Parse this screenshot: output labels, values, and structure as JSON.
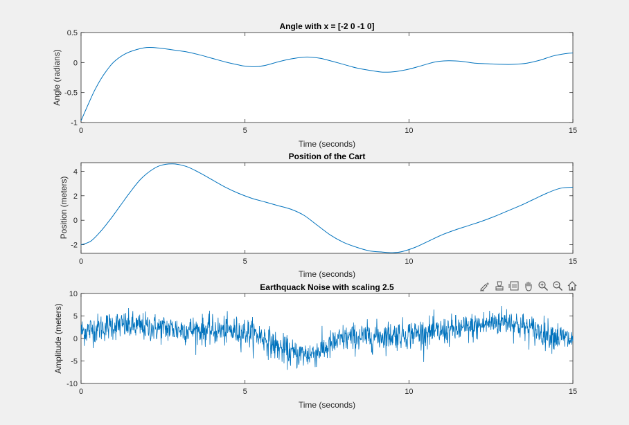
{
  "figure": {
    "background": "#f0f0f0",
    "line_color": "#0072bd"
  },
  "toolbar": {
    "icons": [
      "brush-icon",
      "data-tips-icon",
      "restore-view-icon",
      "pan-icon",
      "zoom-in-icon",
      "zoom-out-icon",
      "home-icon"
    ]
  },
  "chart_data": [
    {
      "type": "line",
      "title": "Angle with x = [-2 0 -1 0]",
      "xlabel": "Time (seconds)",
      "ylabel": "Angle (radians)",
      "xlim": [
        0,
        15
      ],
      "ylim": [
        -1,
        0.5
      ],
      "xticks": [
        "0",
        "5",
        "10",
        "15"
      ],
      "yticks": [
        "-1",
        "-0.5",
        "0",
        "0.5"
      ],
      "grid": false,
      "series": [
        {
          "x": [
            0,
            0.2,
            0.4,
            0.6,
            0.8,
            1.0,
            1.3,
            1.6,
            2.0,
            2.4,
            2.8,
            3.2,
            3.6,
            4.0,
            4.4,
            4.8,
            5.0,
            5.3,
            5.6,
            6.0,
            6.4,
            6.8,
            7.0,
            7.3,
            7.6,
            8.0,
            8.4,
            8.8,
            9.2,
            9.6,
            10.0,
            10.4,
            10.8,
            11.2,
            11.6,
            12.0,
            12.4,
            12.8,
            13.2,
            13.6,
            14.0,
            14.4,
            14.8,
            15.0
          ],
          "y": [
            -0.97,
            -0.72,
            -0.48,
            -0.28,
            -0.12,
            0.01,
            0.13,
            0.2,
            0.25,
            0.24,
            0.21,
            0.18,
            0.13,
            0.07,
            0.01,
            -0.04,
            -0.06,
            -0.07,
            -0.05,
            0.01,
            0.06,
            0.09,
            0.09,
            0.07,
            0.03,
            -0.03,
            -0.09,
            -0.13,
            -0.16,
            -0.15,
            -0.11,
            -0.05,
            0.01,
            0.03,
            0.02,
            -0.01,
            -0.02,
            -0.03,
            -0.03,
            -0.01,
            0.04,
            0.11,
            0.15,
            0.16
          ]
        }
      ]
    },
    {
      "type": "line",
      "title": "Position of the Cart",
      "xlabel": "Time (seconds)",
      "ylabel": "Position (meters)",
      "xlim": [
        0,
        15
      ],
      "ylim": [
        -2.7,
        4.7
      ],
      "xticks": [
        "0",
        "5",
        "10",
        "15"
      ],
      "yticks": [
        "-2",
        "0",
        "2",
        "4"
      ],
      "grid": false,
      "series": [
        {
          "x": [
            0,
            0.3,
            0.6,
            0.9,
            1.2,
            1.5,
            1.8,
            2.1,
            2.4,
            2.8,
            3.2,
            3.6,
            4.0,
            4.4,
            4.8,
            5.2,
            5.6,
            6.0,
            6.4,
            6.8,
            7.2,
            7.6,
            8.0,
            8.4,
            8.8,
            9.2,
            9.5,
            9.8,
            10.2,
            10.6,
            11.0,
            11.4,
            11.8,
            12.2,
            12.6,
            13.0,
            13.4,
            13.8,
            14.2,
            14.6,
            15.0
          ],
          "y": [
            -2.0,
            -1.7,
            -0.9,
            0.1,
            1.2,
            2.3,
            3.3,
            4.0,
            4.45,
            4.6,
            4.4,
            3.9,
            3.3,
            2.7,
            2.2,
            1.8,
            1.5,
            1.2,
            0.9,
            0.4,
            -0.4,
            -1.2,
            -1.8,
            -2.2,
            -2.5,
            -2.6,
            -2.65,
            -2.55,
            -2.2,
            -1.7,
            -1.2,
            -0.8,
            -0.45,
            -0.1,
            0.3,
            0.75,
            1.2,
            1.7,
            2.2,
            2.6,
            2.7
          ]
        }
      ]
    },
    {
      "type": "line",
      "title": "Earthquack Noise with scaling 2.5",
      "xlabel": "Time (seconds)",
      "ylabel": "Amplitude (meters)",
      "xlim": [
        0,
        15
      ],
      "ylim": [
        -10,
        10
      ],
      "xticks": [
        "0",
        "5",
        "10",
        "15"
      ],
      "yticks": [
        "-10",
        "-5",
        "0",
        "5",
        "10"
      ],
      "grid": false,
      "series": [
        {
          "trend_x": [
            0,
            1,
            2,
            3,
            4,
            5,
            5.5,
            6,
            6.5,
            7,
            7.5,
            8,
            9,
            10,
            11,
            12,
            12.5,
            13,
            13.5,
            14,
            15
          ],
          "trend_y": [
            1.5,
            3,
            2.5,
            2,
            1.8,
            1.5,
            0.5,
            -2,
            -3.5,
            -3.5,
            -2,
            0,
            0.5,
            1,
            1.5,
            2.5,
            3.5,
            4,
            2.5,
            1.5,
            -0.5
          ],
          "noise_amplitude": 1.6,
          "samples": 1500
        }
      ]
    }
  ]
}
